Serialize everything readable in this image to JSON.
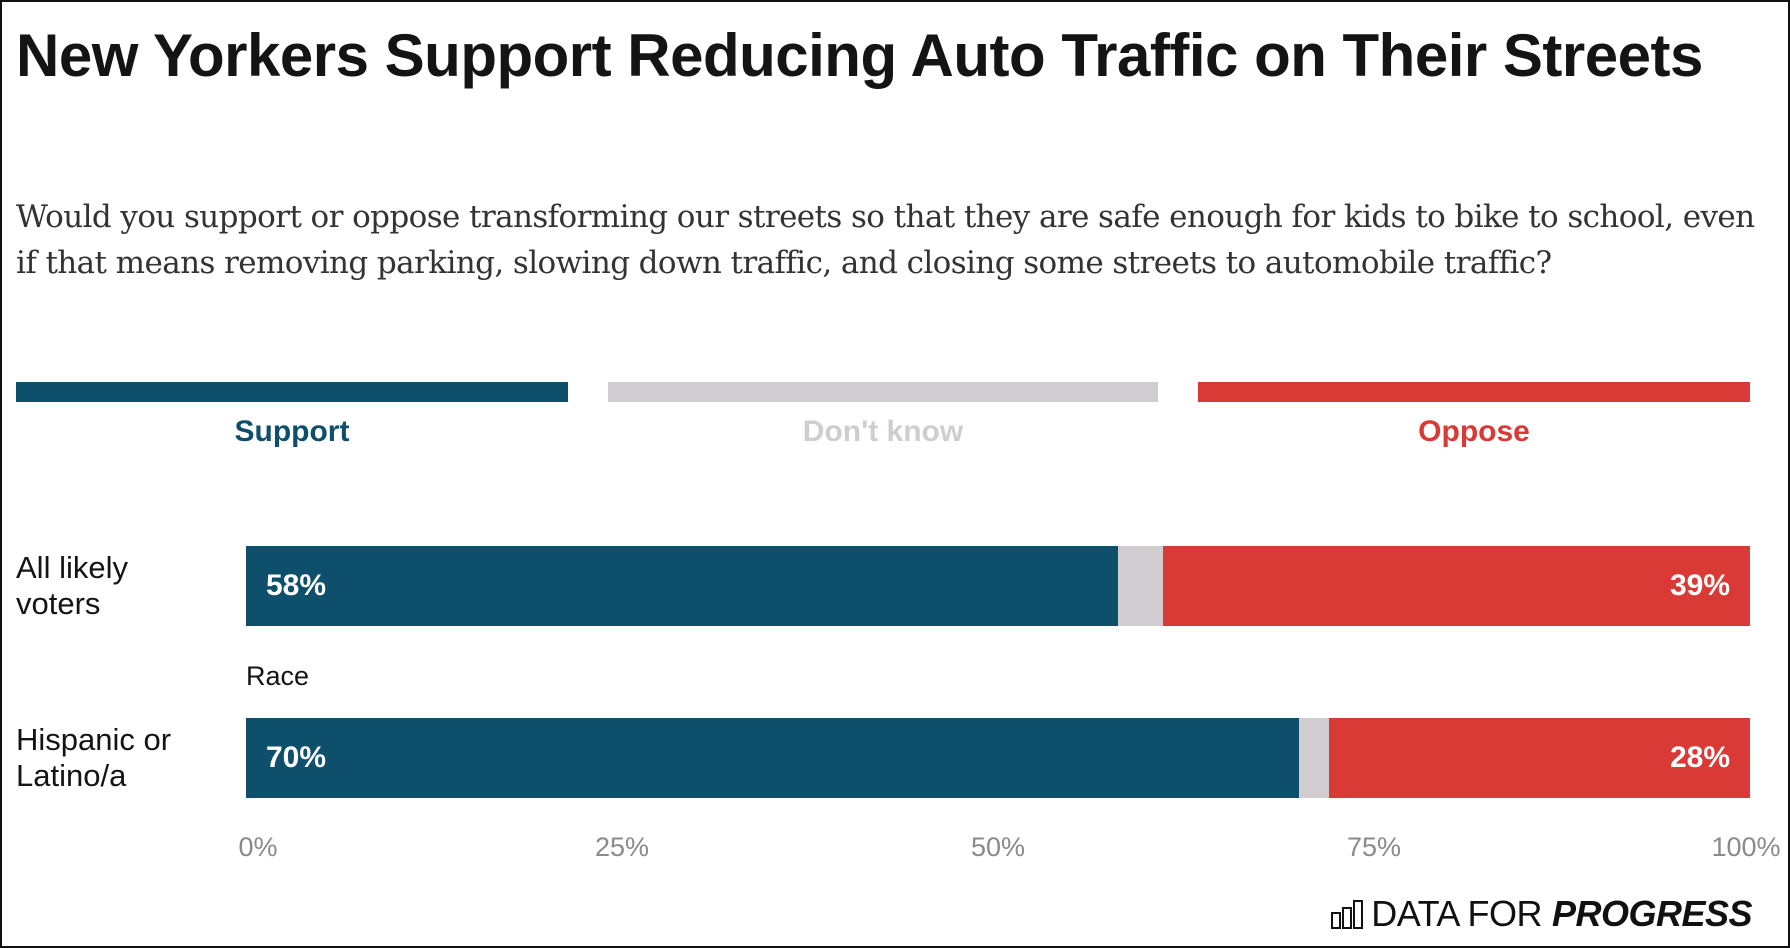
{
  "title": "New Yorkers Support Reducing Auto Traffic on Their Streets",
  "subtitle": "Would you support or oppose transforming our streets so that they are safe enough for kids to bike to school, even if that means removing parking, slowing down traffic, and closing some streets to automobile traffic?",
  "colors": {
    "support": "#0e4f6c",
    "dont_know": "#d0ccd0",
    "oppose": "#da3a35"
  },
  "legend": [
    {
      "key": "support",
      "label": "Support"
    },
    {
      "key": "dont_know",
      "label": "Don't know"
    },
    {
      "key": "oppose",
      "label": "Oppose"
    }
  ],
  "group_label": "Race",
  "logo": {
    "light": "DATA FOR",
    "bold": "PROGRESS",
    "icon": "bar-chart-icon"
  },
  "chart_data": {
    "type": "bar",
    "orientation": "horizontal",
    "stacked": true,
    "title": "New Yorkers Support Reducing Auto Traffic on Their Streets",
    "categories": [
      "All likely voters",
      "Hispanic or Latino/a"
    ],
    "category_groups": [
      {
        "name": "",
        "categories": [
          "All likely voters"
        ]
      },
      {
        "name": "Race",
        "categories": [
          "Hispanic or Latino/a"
        ]
      }
    ],
    "series": [
      {
        "name": "Support",
        "values": [
          58,
          70
        ],
        "labels": [
          "58%",
          "70%"
        ]
      },
      {
        "name": "Don't know",
        "values": [
          3,
          2
        ],
        "labels": [
          "",
          ""
        ]
      },
      {
        "name": "Oppose",
        "values": [
          39,
          28
        ],
        "labels": [
          "39%",
          "28%"
        ]
      }
    ],
    "xlim": [
      0,
      100
    ],
    "xticks": [
      "0%",
      "25%",
      "50%",
      "75%",
      "100%"
    ],
    "xlabel": "",
    "ylabel": "",
    "grid": false,
    "legend_position": "top"
  }
}
